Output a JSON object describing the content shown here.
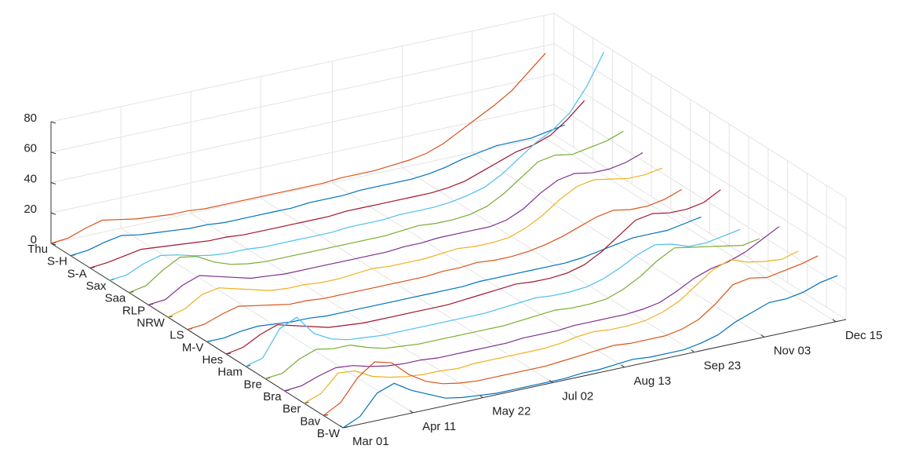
{
  "chart_data": {
    "type": "waterfall3d",
    "categories": [
      "B-W",
      "Bav",
      "Ber",
      "Bra",
      "Bre",
      "Ham",
      "Hes",
      "M-V",
      "LS",
      "NRW",
      "RLP",
      "Saa",
      "Sax",
      "S-A",
      "S-H",
      "Thu"
    ],
    "x": [
      0,
      10,
      20,
      30,
      40,
      50,
      60,
      70,
      80,
      90,
      100,
      110,
      120,
      130,
      140,
      150,
      160,
      170,
      180,
      190,
      200,
      210,
      220,
      230,
      240,
      250,
      260,
      270,
      280,
      290
    ],
    "xlim": [
      0,
      295
    ],
    "xticks": [
      {
        "value": 0,
        "label": "Mar 01"
      },
      {
        "value": 41,
        "label": "Apr 11"
      },
      {
        "value": 82,
        "label": "May 22"
      },
      {
        "value": 123,
        "label": "Jul 02"
      },
      {
        "value": 165,
        "label": "Aug 13"
      },
      {
        "value": 206,
        "label": "Sep 23"
      },
      {
        "value": 247,
        "label": "Nov 03"
      },
      {
        "value": 289,
        "label": "Dec 15"
      }
    ],
    "ylim": [
      0,
      80
    ],
    "yticks": [
      0,
      20,
      40,
      60,
      80
    ],
    "grid": true,
    "series": [
      {
        "name": "B-W",
        "color": "#0072BD",
        "values": [
          0,
          5,
          18,
          22,
          15,
          10,
          5,
          3,
          2,
          1,
          1,
          1,
          1,
          1,
          2,
          2,
          3,
          4,
          3,
          3,
          3,
          5,
          8,
          14,
          18,
          22,
          22,
          24,
          28,
          30
        ]
      },
      {
        "name": "Bav",
        "color": "#D95319",
        "values": [
          0,
          6,
          20,
          28,
          25,
          15,
          8,
          4,
          2,
          1,
          1,
          1,
          1,
          1,
          2,
          3,
          4,
          5,
          4,
          4,
          4,
          6,
          10,
          18,
          28,
          30,
          28,
          30,
          32,
          35
        ]
      },
      {
        "name": "Ber",
        "color": "#EDB120",
        "values": [
          0,
          4,
          15,
          14,
          8,
          5,
          3,
          2,
          2,
          1,
          2,
          2,
          2,
          2,
          2,
          3,
          5,
          6,
          5,
          5,
          6,
          9,
          14,
          22,
          30,
          34,
          30,
          28,
          27,
          30
        ]
      },
      {
        "name": "Bra",
        "color": "#7E2F8E",
        "values": [
          0,
          1,
          5,
          8,
          7,
          4,
          2,
          1,
          1,
          0,
          0,
          0,
          0,
          0,
          1,
          1,
          1,
          2,
          2,
          2,
          2,
          3,
          5,
          10,
          16,
          20,
          22,
          26,
          32,
          38
        ]
      },
      {
        "name": "Bre",
        "color": "#77AC30",
        "values": [
          0,
          1,
          8,
          12,
          10,
          10,
          6,
          3,
          2,
          1,
          1,
          1,
          1,
          1,
          1,
          2,
          3,
          4,
          3,
          3,
          4,
          8,
          14,
          22,
          28,
          26,
          24,
          22,
          20,
          22
        ]
      },
      {
        "name": "Ham",
        "color": "#4DBEEE",
        "values": [
          0,
          3,
          20,
          25,
          12,
          6,
          3,
          2,
          1,
          1,
          1,
          1,
          1,
          1,
          1,
          2,
          3,
          4,
          3,
          3,
          4,
          7,
          12,
          18,
          22,
          20,
          16,
          16,
          18,
          20
        ]
      },
      {
        "name": "Hes",
        "color": "#A2142F",
        "values": [
          0,
          2,
          8,
          12,
          9,
          6,
          3,
          2,
          1,
          1,
          1,
          1,
          1,
          1,
          2,
          3,
          4,
          5,
          4,
          4,
          5,
          8,
          14,
          22,
          30,
          32,
          30,
          30,
          32,
          38
        ]
      },
      {
        "name": "M-V",
        "color": "#0072BD",
        "values": [
          0,
          0,
          2,
          3,
          2,
          1,
          1,
          0,
          0,
          0,
          0,
          0,
          0,
          0,
          0,
          0,
          1,
          1,
          1,
          1,
          1,
          1,
          2,
          4,
          6,
          8,
          8,
          8,
          10,
          12
        ]
      },
      {
        "name": "LS",
        "color": "#D95319",
        "values": [
          0,
          1,
          5,
          8,
          6,
          4,
          2,
          2,
          1,
          1,
          1,
          1,
          1,
          1,
          1,
          2,
          2,
          3,
          2,
          2,
          3,
          5,
          8,
          12,
          16,
          18,
          16,
          16,
          18,
          22
        ]
      },
      {
        "name": "NRW",
        "color": "#EDB120",
        "values": [
          0,
          3,
          10,
          12,
          9,
          6,
          3,
          2,
          2,
          1,
          1,
          2,
          3,
          2,
          2,
          2,
          3,
          4,
          3,
          3,
          4,
          8,
          14,
          22,
          28,
          30,
          28,
          26,
          26,
          28
        ]
      },
      {
        "name": "RLP",
        "color": "#7E2F8E",
        "values": [
          0,
          1,
          8,
          12,
          9,
          6,
          3,
          2,
          1,
          1,
          1,
          1,
          1,
          1,
          1,
          2,
          2,
          3,
          3,
          3,
          3,
          5,
          10,
          18,
          24,
          26,
          24,
          24,
          26,
          30
        ]
      },
      {
        "name": "Saa",
        "color": "#77AC30",
        "values": [
          0,
          2,
          10,
          16,
          14,
          8,
          4,
          2,
          1,
          1,
          1,
          1,
          1,
          1,
          1,
          1,
          2,
          3,
          2,
          2,
          3,
          6,
          12,
          20,
          28,
          30,
          28,
          30,
          32,
          36
        ]
      },
      {
        "name": "Sax",
        "color": "#4DBEEE",
        "values": [
          0,
          1,
          6,
          9,
          7,
          4,
          2,
          1,
          1,
          0,
          0,
          0,
          0,
          0,
          1,
          1,
          1,
          2,
          2,
          2,
          3,
          5,
          8,
          14,
          22,
          30,
          36,
          45,
          60,
          80
        ]
      },
      {
        "name": "S-A",
        "color": "#A2142F",
        "values": [
          0,
          1,
          3,
          5,
          4,
          3,
          2,
          1,
          1,
          0,
          0,
          0,
          0,
          0,
          0,
          1,
          1,
          1,
          1,
          1,
          1,
          2,
          4,
          8,
          12,
          16,
          18,
          22,
          30,
          40
        ]
      },
      {
        "name": "S-H",
        "color": "#0072BD",
        "values": [
          0,
          1,
          4,
          6,
          4,
          3,
          2,
          1,
          1,
          0,
          0,
          0,
          0,
          0,
          1,
          1,
          1,
          2,
          2,
          2,
          2,
          3,
          5,
          8,
          10,
          12,
          12,
          12,
          14,
          16
        ]
      },
      {
        "name": "Thu",
        "color": "#D95319",
        "values": [
          0,
          1,
          5,
          8,
          6,
          4,
          3,
          2,
          2,
          1,
          1,
          1,
          1,
          1,
          1,
          1,
          1,
          2,
          2,
          2,
          3,
          4,
          6,
          10,
          16,
          22,
          28,
          35,
          45,
          55
        ]
      }
    ]
  }
}
